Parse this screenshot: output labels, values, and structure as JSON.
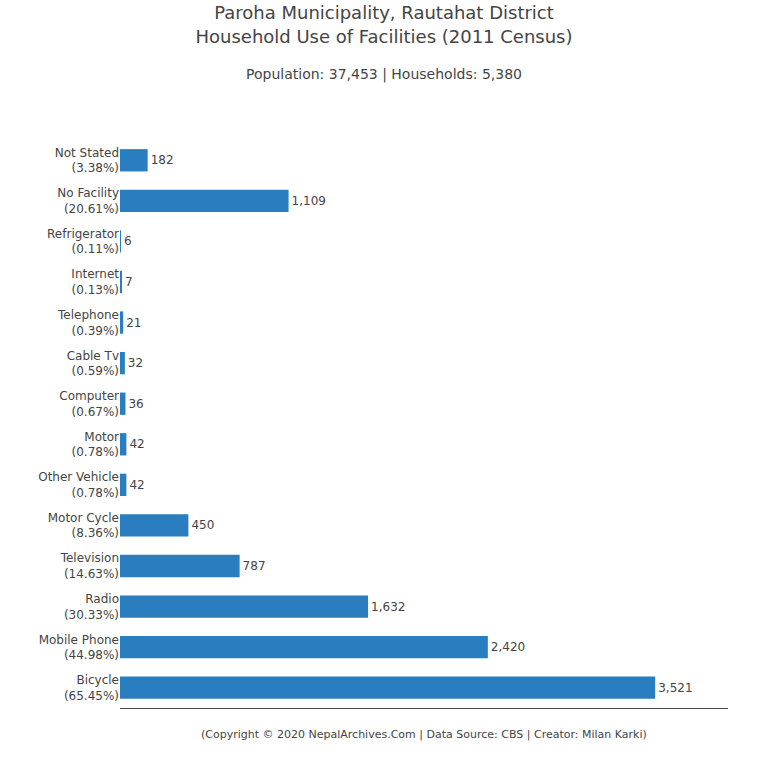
{
  "chart_data": {
    "type": "bar",
    "orientation": "horizontal",
    "title": "Paroha Municipality, Rautahat District\nHousehold Use of Facilities (2011 Census)",
    "subtitle": "Population: 37,453 | Households: 5,380",
    "categories": [
      "Not Stated\n(3.38%)",
      "No Facility\n(20.61%)",
      "Refrigerator\n(0.11%)",
      "Internet\n(0.13%)",
      "Telephone\n(0.39%)",
      "Cable Tv\n(0.59%)",
      "Computer\n(0.67%)",
      "Motor\n(0.78%)",
      "Other Vehicle\n(0.78%)",
      "Motor Cycle\n(8.36%)",
      "Television\n(14.63%)",
      "Radio\n(30.33%)",
      "Mobile Phone\n(44.98%)",
      "Bicycle\n(65.45%)"
    ],
    "values": [
      182,
      1109,
      6,
      7,
      21,
      32,
      36,
      42,
      42,
      450,
      787,
      1632,
      2420,
      3521
    ],
    "value_labels": [
      "182",
      "1,109",
      "6",
      "7",
      "21",
      "32",
      "36",
      "42",
      "42",
      "450",
      "787",
      "1,632",
      "2,420",
      "3,521"
    ],
    "data_labels": true,
    "color": "#2a7dbf",
    "xlim": [
      0,
      4000
    ],
    "tick_labels": "y",
    "grid": false,
    "annotations": [
      "(Copyright © 2020 NepalArchives.Com | Data Source: CBS | Creator: Milan Karki)"
    ]
  }
}
